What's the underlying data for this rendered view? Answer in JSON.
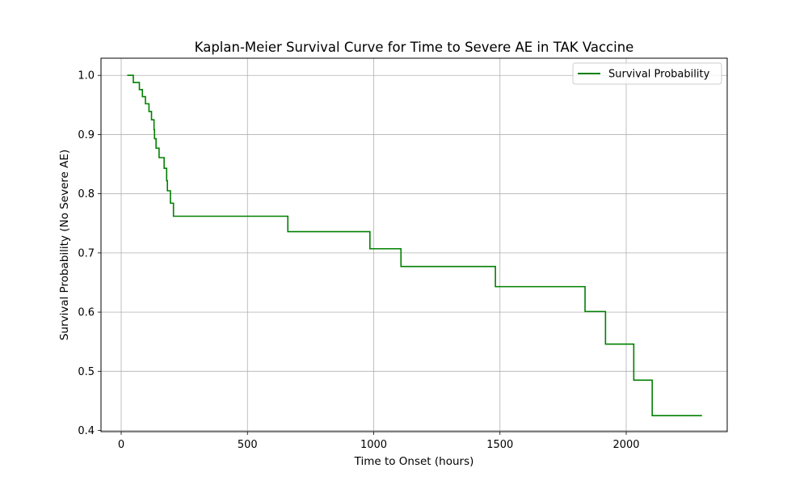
{
  "chart_data": {
    "type": "line",
    "step": "post",
    "title": "Kaplan-Meier Survival Curve for Time to Severe AE in TAK Vaccine",
    "xlabel": "Time to Onset (hours)",
    "ylabel": "Survival Probability (No Severe AE)",
    "xlim": [
      -80,
      2400
    ],
    "ylim": [
      0.398,
      1.029
    ],
    "xticks": [
      0,
      500,
      1000,
      1500,
      2000
    ],
    "xtick_labels": [
      "0",
      "500",
      "1000",
      "1500",
      "2000"
    ],
    "yticks": [
      0.4,
      0.5,
      0.6,
      0.7,
      0.8,
      0.9,
      1.0
    ],
    "ytick_labels": [
      "0.4",
      "0.5",
      "0.6",
      "0.7",
      "0.8",
      "0.9",
      "1.0"
    ],
    "grid": true,
    "legend_position": "top-right",
    "series": [
      {
        "name": "Survival Probability",
        "color": "#008000",
        "x": [
          24,
          48,
          72,
          84,
          96,
          110,
          120,
          130,
          132,
          138,
          150,
          170,
          180,
          183,
          188,
          195,
          207,
          660,
          985,
          1108,
          1482,
          1837,
          1918,
          2030,
          2103,
          2300
        ],
        "y": [
          1.0,
          0.988,
          0.976,
          0.964,
          0.952,
          0.939,
          0.925,
          0.908,
          0.893,
          0.877,
          0.861,
          0.843,
          0.822,
          0.805,
          0.805,
          0.784,
          0.762,
          0.736,
          0.707,
          0.677,
          0.643,
          0.601,
          0.546,
          0.485,
          0.425,
          0.425
        ]
      }
    ]
  }
}
